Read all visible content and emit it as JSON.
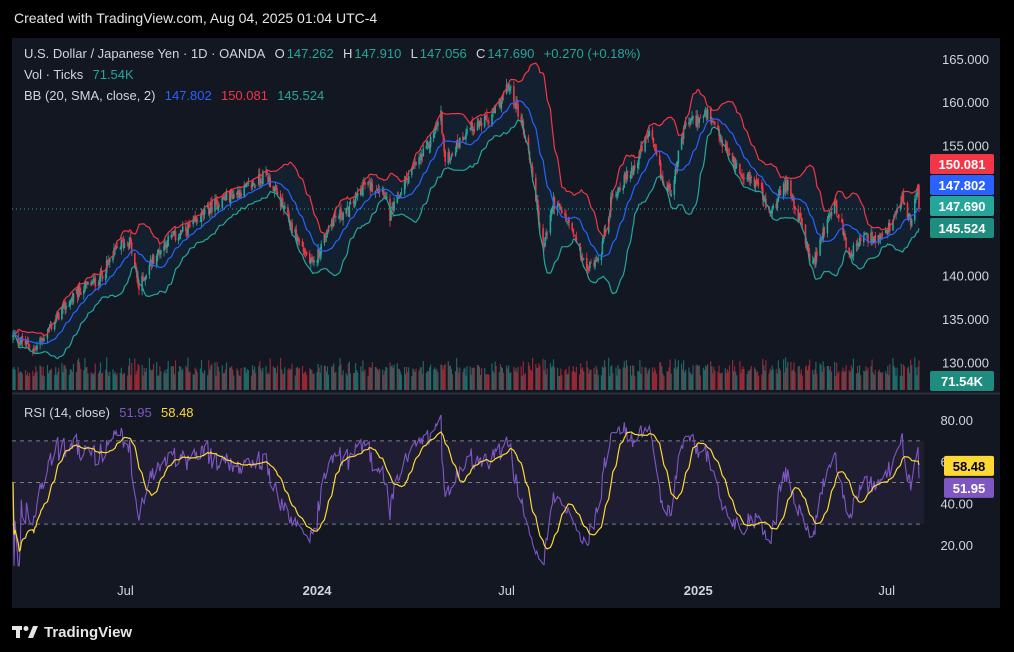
{
  "header": {
    "created_text": "Created with TradingView.com, Aug 04, 2025 01:04 UTC-4"
  },
  "legend": {
    "symbol": "U.S. Dollar / Japanese Yen · 1D · OANDA",
    "o_label": "O",
    "o_value": "147.262",
    "h_label": "H",
    "h_value": "147.910",
    "l_label": "L",
    "l_value": "147.056",
    "c_label": "C",
    "c_value": "147.690",
    "change": "+0.270 (+0.18%)",
    "vol_label": "Vol · Ticks",
    "vol_value": "71.54K",
    "bb_label": "BB (20, SMA, close, 2)",
    "bb_basis": "147.802",
    "bb_upper": "150.081",
    "bb_lower": "145.524",
    "rsi_label": "RSI (14, close)",
    "rsi_value": "51.95",
    "rsi_ma": "58.48"
  },
  "price_badges": {
    "upper": "150.081",
    "basis": "147.802",
    "close": "147.690",
    "lower": "145.524",
    "volume": "71.54K",
    "rsi_ma": "58.48",
    "rsi": "51.95"
  },
  "colors": {
    "bg": "#131722",
    "up": "#26a69a",
    "down": "#f23645",
    "basis": "#2962ff",
    "upper": "#f23645",
    "lower": "#26a69a",
    "rsi": "#7e57c2",
    "rsi_ma": "#fdd835",
    "text": "#d1d4dc"
  },
  "footer": {
    "brand": "TradingView"
  },
  "chart_data": {
    "type": "candlestick",
    "title": "U.S. Dollar / Japanese Yen · 1D · OANDA",
    "y_ticks": [
      "165.000",
      "160.000",
      "155.000",
      "150.000",
      "145.000",
      "140.000",
      "135.000",
      "130.000"
    ],
    "y_tick_values": [
      165,
      160,
      155,
      150,
      145,
      140,
      135,
      130
    ],
    "ylim": [
      126.6,
      167.4
    ],
    "rsi_ticks": [
      "80.00",
      "60.00",
      "40.00",
      "20.00"
    ],
    "rsi_tick_values": [
      80,
      60,
      40,
      20
    ],
    "rsi_ylim": [
      8,
      92
    ],
    "rsi_bands": [
      70,
      50,
      30
    ],
    "x_ticks": [
      {
        "label": "Jul",
        "date": "2023-07-01",
        "bold": false
      },
      {
        "label": "2024",
        "date": "2024-01-01",
        "bold": true
      },
      {
        "label": "Jul",
        "date": "2024-07-01",
        "bold": false
      },
      {
        "label": "2025",
        "date": "2025-01-01",
        "bold": true
      },
      {
        "label": "Jul",
        "date": "2025-07-01",
        "bold": false
      }
    ],
    "date_range": [
      "2023-03-15",
      "2025-08-01"
    ],
    "close_keyframes": [
      [
        "2023-03-15",
        133.0
      ],
      [
        "2023-04-05",
        131.5
      ],
      [
        "2023-05-01",
        136.0
      ],
      [
        "2023-05-20",
        138.5
      ],
      [
        "2023-06-05",
        139.5
      ],
      [
        "2023-06-25",
        143.5
      ],
      [
        "2023-07-05",
        144.0
      ],
      [
        "2023-07-14",
        138.5
      ],
      [
        "2023-07-25",
        141.5
      ],
      [
        "2023-08-10",
        144.0
      ],
      [
        "2023-09-01",
        145.5
      ],
      [
        "2023-09-20",
        147.8
      ],
      [
        "2023-10-05",
        149.0
      ],
      [
        "2023-10-25",
        150.0
      ],
      [
        "2023-11-13",
        151.7
      ],
      [
        "2023-11-25",
        149.0
      ],
      [
        "2023-12-10",
        145.0
      ],
      [
        "2023-12-28",
        141.0
      ],
      [
        "2024-01-15",
        146.5
      ],
      [
        "2024-01-31",
        147.5
      ],
      [
        "2024-02-15",
        150.5
      ],
      [
        "2024-03-05",
        150.0
      ],
      [
        "2024-03-11",
        146.8
      ],
      [
        "2024-03-28",
        151.4
      ],
      [
        "2024-04-15",
        154.5
      ],
      [
        "2024-04-29",
        158.5
      ],
      [
        "2024-05-03",
        153.0
      ],
      [
        "2024-05-25",
        157.0
      ],
      [
        "2024-06-15",
        158.0
      ],
      [
        "2024-07-03",
        161.8
      ],
      [
        "2024-07-15",
        158.0
      ],
      [
        "2024-07-25",
        152.5
      ],
      [
        "2024-08-05",
        143.0
      ],
      [
        "2024-08-15",
        148.5
      ],
      [
        "2024-08-30",
        146.0
      ],
      [
        "2024-09-16",
        140.6
      ],
      [
        "2024-09-30",
        143.0
      ],
      [
        "2024-10-10",
        149.0
      ],
      [
        "2024-10-31",
        152.5
      ],
      [
        "2024-11-15",
        156.5
      ],
      [
        "2024-11-30",
        150.0
      ],
      [
        "2024-12-06",
        150.0
      ],
      [
        "2024-12-20",
        157.5
      ],
      [
        "2025-01-10",
        158.5
      ],
      [
        "2025-01-25",
        155.0
      ],
      [
        "2025-02-10",
        152.0
      ],
      [
        "2025-02-28",
        150.5
      ],
      [
        "2025-03-10",
        147.0
      ],
      [
        "2025-03-28",
        150.8
      ],
      [
        "2025-04-08",
        146.5
      ],
      [
        "2025-04-21",
        141.0
      ],
      [
        "2025-05-01",
        145.0
      ],
      [
        "2025-05-12",
        148.5
      ],
      [
        "2025-05-26",
        142.5
      ],
      [
        "2025-06-10",
        144.5
      ],
      [
        "2025-06-25",
        144.0
      ],
      [
        "2025-07-10",
        146.8
      ],
      [
        "2025-07-16",
        149.0
      ],
      [
        "2025-07-24",
        146.0
      ],
      [
        "2025-07-31",
        150.7
      ],
      [
        "2025-08-01",
        147.69
      ]
    ],
    "bb": {
      "length": 20,
      "mult": 2,
      "basis_last": 147.802,
      "upper_last": 150.081,
      "lower_last": 145.524
    },
    "last_close": 147.69,
    "last_volume": "71.54K",
    "rsi_last": 51.95,
    "rsi_ma_last": 58.48
  }
}
